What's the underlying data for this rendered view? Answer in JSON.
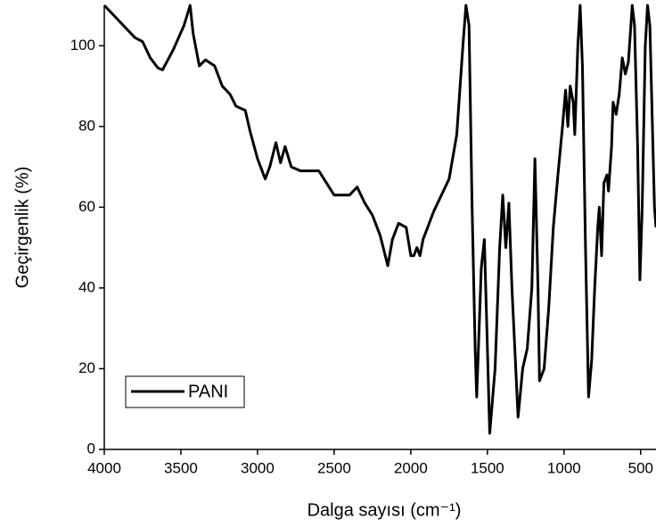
{
  "chart_data": {
    "type": "line",
    "xlabel": "Dalga sayısı (cm⁻¹)",
    "ylabel": "Geçirgenlik (%)",
    "xlim": [
      4000,
      400
    ],
    "ylim": [
      0,
      110
    ],
    "xticks": [
      4000,
      3500,
      3000,
      2500,
      2000,
      1500,
      1000,
      500
    ],
    "yticks": [
      0,
      20,
      40,
      60,
      80,
      100
    ],
    "legend": "lower left",
    "series": [
      {
        "name": "PANI",
        "color": "#000000",
        "x": [
          4000,
          3900,
          3800,
          3750,
          3700,
          3650,
          3620,
          3550,
          3480,
          3440,
          3420,
          3380,
          3340,
          3280,
          3230,
          3180,
          3140,
          3080,
          3050,
          3000,
          2950,
          2920,
          2880,
          2850,
          2820,
          2780,
          2720,
          2600,
          2550,
          2500,
          2400,
          2350,
          2300,
          2250,
          2200,
          2150,
          2120,
          2080,
          2030,
          2000,
          1980,
          1960,
          1940,
          1920,
          1850,
          1750,
          1700,
          1660,
          1640,
          1620,
          1600,
          1580,
          1570,
          1540,
          1520,
          1500,
          1485,
          1450,
          1420,
          1400,
          1380,
          1360,
          1340,
          1300,
          1270,
          1240,
          1210,
          1190,
          1170,
          1160,
          1130,
          1100,
          1070,
          1040,
          1010,
          990,
          975,
          960,
          940,
          930,
          910,
          895,
          880,
          860,
          840,
          820,
          800,
          780,
          770,
          755,
          740,
          720,
          710,
          690,
          680,
          660,
          640,
          620,
          600,
          580,
          555,
          540,
          520,
          505,
          490,
          470,
          455,
          440,
          420,
          410,
          400
        ],
        "values": [
          110,
          106,
          102,
          101,
          97,
          94.5,
          94,
          99,
          105,
          110,
          103,
          95,
          96.5,
          95,
          90,
          88,
          85,
          84,
          79,
          72,
          67,
          70,
          76,
          71,
          75,
          70,
          69,
          69,
          66,
          63,
          63,
          65,
          61,
          58,
          53,
          45.5,
          52,
          56,
          55,
          48,
          48,
          50,
          48,
          52,
          59,
          67,
          78,
          100,
          110,
          105,
          60,
          25,
          13,
          45,
          52,
          25,
          4,
          20,
          50,
          63,
          50,
          61,
          40,
          8,
          20,
          25,
          40,
          72,
          40,
          17,
          20,
          35,
          55,
          68,
          80,
          89,
          80,
          90,
          86,
          78,
          100,
          110,
          95,
          50,
          13,
          22,
          40,
          55,
          60,
          48,
          66,
          68,
          64,
          75,
          86,
          83,
          88,
          97,
          93,
          96,
          110,
          105,
          75,
          42,
          60,
          100,
          110,
          105,
          75,
          60,
          55
        ]
      }
    ]
  }
}
